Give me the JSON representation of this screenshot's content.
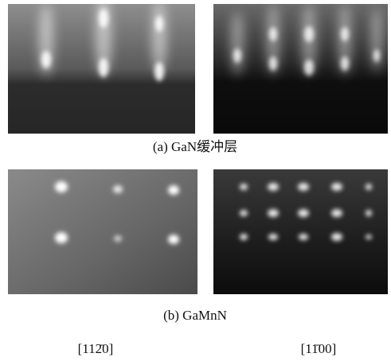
{
  "panels": [
    {
      "caption": "(a)  GaN缓冲层"
    },
    {
      "caption": "(b)  GaMnN"
    }
  ],
  "directions": [
    "[112̄0]",
    "[11̄00]"
  ]
}
